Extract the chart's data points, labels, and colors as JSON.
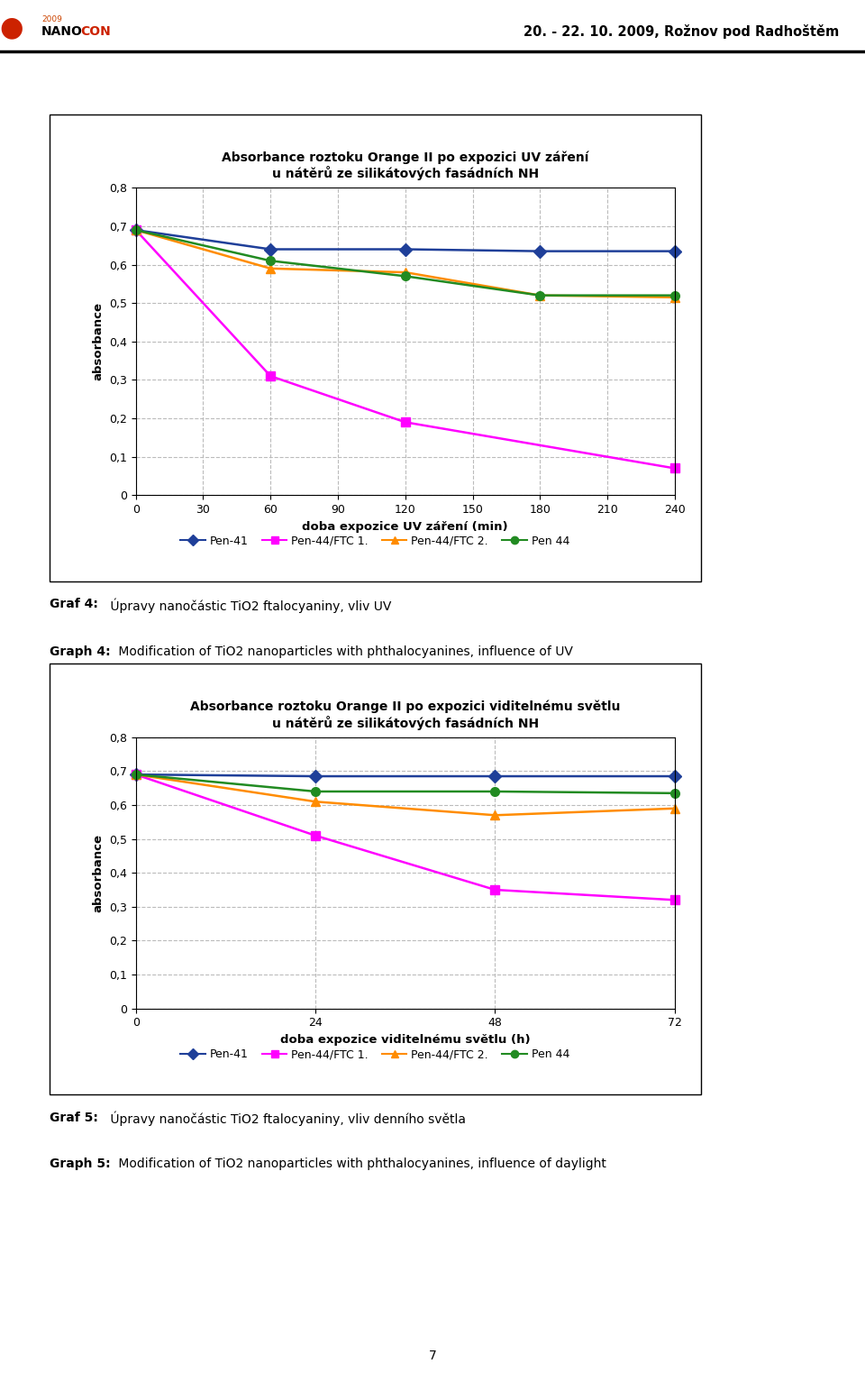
{
  "header_text": "20. - 22. 10. 2009, Rožnov pod Radhoštěm",
  "chart1": {
    "title_line1": "Absorbance roztoku Orange II po expozici UV záření",
    "title_line2": "u nátěrů ze silikátových fasádních NH",
    "xlabel": "doba expozice UV záření (min)",
    "ylabel": "absorbance",
    "xlim": [
      0,
      240
    ],
    "ylim": [
      0,
      0.8
    ],
    "xticks": [
      0,
      30,
      60,
      90,
      120,
      150,
      180,
      210,
      240
    ],
    "yticks": [
      0,
      0.1,
      0.2,
      0.3,
      0.4,
      0.5,
      0.6,
      0.7,
      0.8
    ],
    "series": [
      {
        "label": "Pen-41",
        "x": [
          0,
          60,
          120,
          180,
          240
        ],
        "y": [
          0.69,
          0.64,
          0.64,
          0.635,
          0.635
        ],
        "color": "#1F3F99",
        "marker": "D",
        "markersize": 7,
        "linewidth": 1.8
      },
      {
        "label": "Pen-44/FTC 1.",
        "x": [
          0,
          60,
          120,
          240
        ],
        "y": [
          0.69,
          0.31,
          0.19,
          0.07
        ],
        "color": "#FF00FF",
        "marker": "s",
        "markersize": 7,
        "linewidth": 1.8
      },
      {
        "label": "Pen-44/FTC 2.",
        "x": [
          0,
          60,
          120,
          180,
          240
        ],
        "y": [
          0.69,
          0.59,
          0.58,
          0.52,
          0.515
        ],
        "color": "#FF8C00",
        "marker": "^",
        "markersize": 7,
        "linewidth": 1.8
      },
      {
        "label": "Pen 44",
        "x": [
          0,
          60,
          120,
          180,
          240
        ],
        "y": [
          0.69,
          0.61,
          0.57,
          0.52,
          0.52
        ],
        "color": "#228B22",
        "marker": "o",
        "markersize": 7,
        "linewidth": 1.8
      }
    ]
  },
  "chart2": {
    "title_line1": "Absorbance roztoku Orange II po expozici viditelnému světlu",
    "title_line2": "u nátěrů ze silikátových fasádních NH",
    "xlabel": "doba expozice viditelnému světlu (h)",
    "ylabel": "absorbance",
    "xlim": [
      0,
      72
    ],
    "ylim": [
      0,
      0.8
    ],
    "xticks": [
      0,
      24,
      48,
      72
    ],
    "yticks": [
      0,
      0.1,
      0.2,
      0.3,
      0.4,
      0.5,
      0.6,
      0.7,
      0.8
    ],
    "series": [
      {
        "label": "Pen-41",
        "x": [
          0,
          24,
          48,
          72
        ],
        "y": [
          0.69,
          0.685,
          0.685,
          0.685
        ],
        "color": "#1F3F99",
        "marker": "D",
        "markersize": 7,
        "linewidth": 1.8
      },
      {
        "label": "Pen-44/FTC 1.",
        "x": [
          0,
          24,
          48,
          72
        ],
        "y": [
          0.69,
          0.51,
          0.35,
          0.32
        ],
        "color": "#FF00FF",
        "marker": "s",
        "markersize": 7,
        "linewidth": 1.8
      },
      {
        "label": "Pen-44/FTC 2.",
        "x": [
          0,
          24,
          48,
          72
        ],
        "y": [
          0.69,
          0.61,
          0.57,
          0.59
        ],
        "color": "#FF8C00",
        "marker": "^",
        "markersize": 7,
        "linewidth": 1.8
      },
      {
        "label": "Pen 44",
        "x": [
          0,
          24,
          48,
          72
        ],
        "y": [
          0.69,
          0.64,
          0.64,
          0.635
        ],
        "color": "#228B22",
        "marker": "o",
        "markersize": 7,
        "linewidth": 1.8
      }
    ]
  },
  "legend_labels": [
    "Pen-41",
    "Pen-44/FTC 1.",
    "Pen-44/FTC 2.",
    "Pen 44"
  ],
  "page_number": "7",
  "bg_color": "#FFFFFF",
  "chart_bg": "#FFFFFF",
  "grid_color": "#BBBBBB",
  "grid_style": "--",
  "nanocon_year": "2009",
  "nanocon_nano": "NANO",
  "nanocon_con": "CON",
  "header_right": "20. - 22. 10. 2009, Rožnov pod Radhoštěm",
  "graf4_bold": "Graf 4:",
  "graf4_text": " Úpravy nanočástic TiO",
  "graf4_sub": "2",
  "graf4_end": " ftalocyaniny, vliv UV",
  "graph4_bold": "Graph 4:",
  "graph4_text": " Modification of TiO",
  "graph4_sub": "2",
  "graph4_end": " nanoparticles with phthalocyanines, influence of UV",
  "graf5_bold": "Graf 5:",
  "graf5_text": " Úpravy nanočástic TiO",
  "graf5_sub": "2",
  "graf5_end": " ftalocyaniny, vliv denního světla",
  "graph5_bold": "Graph 5:",
  "graph5_text": " Modification of TiO2 nanoparticles with phthalocyanines, influence of daylight"
}
